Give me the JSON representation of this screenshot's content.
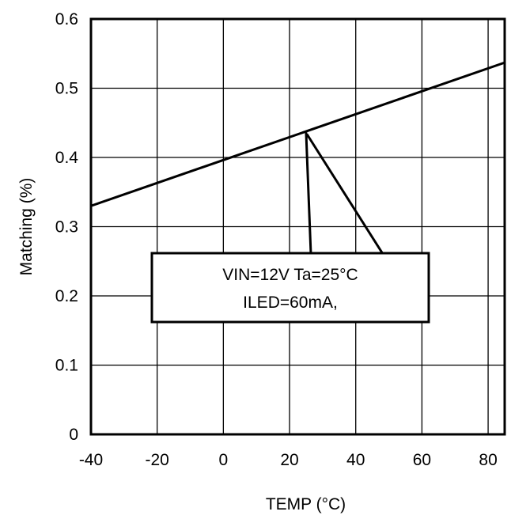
{
  "chart_data": {
    "type": "line",
    "xlabel": "TEMP (°C)",
    "ylabel": "Matching (%)",
    "xlim": [
      -40,
      85
    ],
    "ylim": [
      0,
      0.6
    ],
    "x_ticks": [
      -40,
      -20,
      0,
      20,
      40,
      60,
      80
    ],
    "x_tick_labels": [
      "-40",
      "-20",
      "0",
      "20",
      "40",
      "60",
      "80"
    ],
    "y_ticks": [
      0,
      0.1,
      0.2,
      0.3,
      0.4,
      0.5,
      0.6
    ],
    "y_tick_labels": [
      "0",
      "0.1",
      "0.2",
      "0.3",
      "0.4",
      "0.5",
      "0.6"
    ],
    "grid": true,
    "series": [
      {
        "x": [
          -40,
          85
        ],
        "y": [
          0.33,
          0.537
        ]
      }
    ],
    "annotation": {
      "lines": [
        "VIN=12V Ta=25°C",
        "ILED=60mA,"
      ],
      "points_to": {
        "x": 25,
        "y": 0.436
      }
    }
  }
}
